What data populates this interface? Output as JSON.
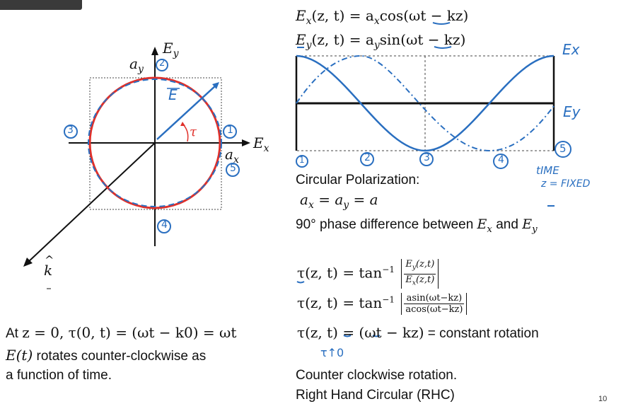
{
  "left_diagram": {
    "ey_label": "E",
    "ey_sub": "y",
    "ex_label": "E",
    "ex_sub": "x",
    "ay_label": "a",
    "ay_sub": "y",
    "ax_label": "a",
    "ax_sub": "x",
    "e_vec_label": "E",
    "tau_label": "τ",
    "k_label": "k",
    "k_hat": "^",
    "marks": [
      "1",
      "2",
      "3",
      "4",
      "5"
    ]
  },
  "equations": {
    "ex": {
      "lhs": "E",
      "sub": "x",
      "args": "(z, t) = a",
      "sub2": "x",
      "fn": "cos",
      "rest": "(ωt − kz)"
    },
    "ey": {
      "lhs": "E",
      "sub": "y",
      "args": "(z, t) = a",
      "sub2": "y",
      "fn": "sin",
      "rest": "(ωt − kz)"
    }
  },
  "wave_plot": {
    "ex_label": "Ex",
    "ey_label": "Ey",
    "marks": [
      "1",
      "2",
      "3",
      "4",
      "5"
    ],
    "note_line1": "tIME",
    "note_line2": "z = FIXED"
  },
  "right_text": {
    "circular_polarization": "Circular Polarization:",
    "ax_eq_ay": {
      "a1": "a",
      "s1": "x",
      "eq1": " = a",
      "s2": "y",
      "eq2": " = a"
    },
    "phase_diff_pre": "90° phase difference between ",
    "phase_diff_ex": "E",
    "phase_diff_ex_sub": "x",
    "phase_diff_and": " and ",
    "phase_diff_ey": "E",
    "phase_diff_ey_sub": "y",
    "tau1_lhs": "τ(z, t) = tan",
    "tau1_exp": "−1",
    "tau1_num": "E",
    "tau1_num_sub": "y",
    "tau1_num_args": "(z,t)",
    "tau1_den": "E",
    "tau1_den_sub": "x",
    "tau1_den_args": "(z,t)",
    "tau2_lhs": "τ(z, t) = tan",
    "tau2_exp": "−1",
    "tau2_num": "asin(ωt−kz)",
    "tau2_den": "acos(ωt−kz)",
    "tau3_lhs": "τ(z, t) = (ωt − kz)",
    "tau3_rhs": " = constant rotation",
    "tau_note": "τ↑0",
    "ccw": "Counter clockwise rotation.",
    "rhc": "Right Hand Circular (RHC)"
  },
  "left_text": {
    "line1_pre": "At ",
    "line1_math": "z = 0, τ(0, t) = (ωt − k0) = ωt",
    "line2_math": "E(t)",
    "line2_rest": " rotates counter-clockwise as",
    "line3": "a function of time."
  },
  "page_number": "10",
  "colors": {
    "circle": "#e0302a",
    "ink_blue": "#2a6fc0",
    "black": "#111111"
  }
}
